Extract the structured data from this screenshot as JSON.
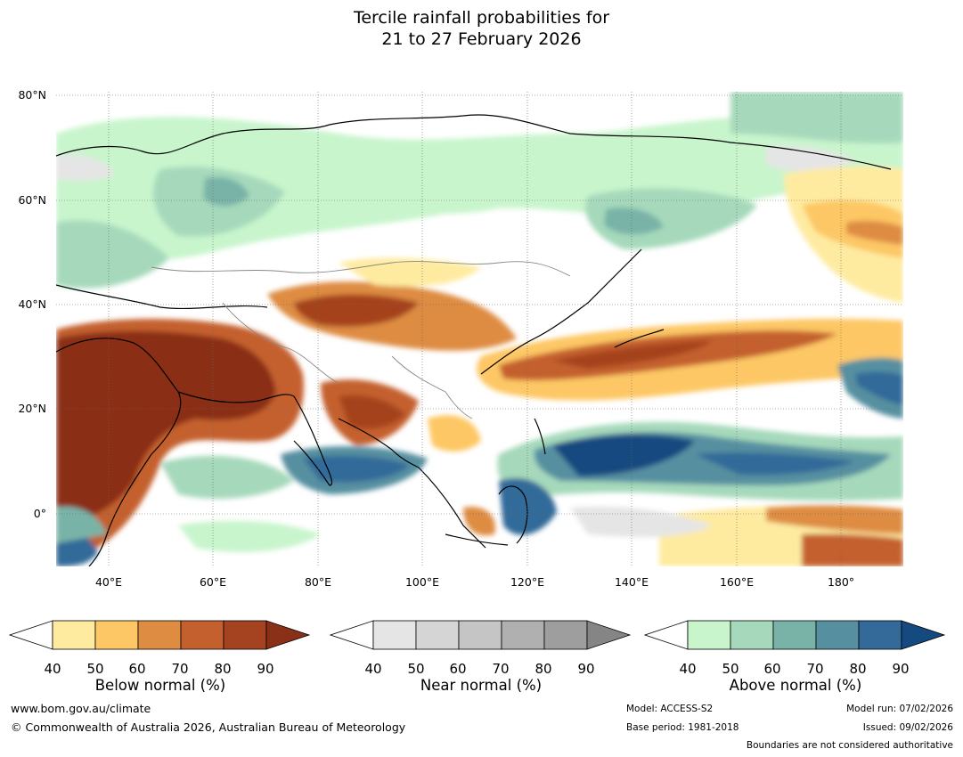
{
  "title_line1": "Tercile rainfall probabilities for",
  "title_line2": "21 to 27 February 2026",
  "map": {
    "lat_labels": [
      "80°N",
      "60°N",
      "40°N",
      "20°N",
      "0°"
    ],
    "lon_labels": [
      "40°E",
      "60°E",
      "80°E",
      "100°E",
      "120°E",
      "140°E",
      "160°E",
      "180°"
    ]
  },
  "legend_ticks": [
    "40",
    "50",
    "60",
    "70",
    "80",
    "90"
  ],
  "legends": {
    "below": {
      "title": "Below normal (%)",
      "colors": [
        "#ffffff",
        "#feeba0",
        "#fdc765",
        "#de8c42",
        "#c4602e",
        "#a5421f",
        "#8a2f18"
      ]
    },
    "near": {
      "title": "Near normal (%)",
      "colors": [
        "#ffffff",
        "#e5e5e5",
        "#d5d5d5",
        "#c5c5c5",
        "#b0b0b0",
        "#9e9e9e",
        "#858585"
      ]
    },
    "above": {
      "title": "Above normal (%)",
      "colors": [
        "#ffffff",
        "#c8f5cc",
        "#a6d9bb",
        "#79b3a7",
        "#5690a0",
        "#336a99",
        "#144a80"
      ]
    }
  },
  "footer": {
    "website": "www.bom.gov.au/climate",
    "copyright": "© Commonwealth of Australia 2026, Australian Bureau of Meteorology",
    "model": "Model: ACCESS-S2",
    "base_period": "Base period: 1981-2018",
    "model_run": "Model run: 07/02/2026",
    "issued": "Issued: 09/02/2026",
    "disclaimer": "Boundaries are not considered authoritative"
  }
}
